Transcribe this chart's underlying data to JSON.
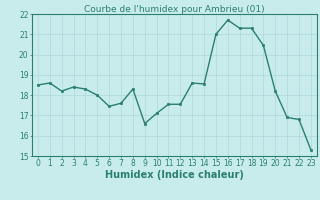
{
  "x": [
    0,
    1,
    2,
    3,
    4,
    5,
    6,
    7,
    8,
    9,
    10,
    11,
    12,
    13,
    14,
    15,
    16,
    17,
    18,
    19,
    20,
    21,
    22,
    23
  ],
  "y": [
    18.5,
    18.6,
    18.2,
    18.4,
    18.3,
    18.0,
    17.45,
    17.6,
    18.3,
    16.6,
    17.1,
    17.55,
    17.55,
    18.6,
    18.55,
    21.0,
    21.7,
    21.3,
    21.3,
    20.45,
    18.2,
    16.9,
    16.8,
    15.3
  ],
  "title": "Courbe de l'humidex pour Ambrieu (01)",
  "xlabel": "Humidex (Indice chaleur)",
  "ylim": [
    15,
    22
  ],
  "xlim_left": -0.5,
  "xlim_right": 23.5,
  "yticks": [
    15,
    16,
    17,
    18,
    19,
    20,
    21,
    22
  ],
  "xticks": [
    0,
    1,
    2,
    3,
    4,
    5,
    6,
    7,
    8,
    9,
    10,
    11,
    12,
    13,
    14,
    15,
    16,
    17,
    18,
    19,
    20,
    21,
    22,
    23
  ],
  "line_color": "#2a7f6f",
  "marker_color": "#2a7f6f",
  "bg_color": "#c8ecec",
  "grid_color": "#b0d8d8",
  "axis_color": "#2a7f6f",
  "tick_label_color": "#2a7f6f",
  "xlabel_color": "#2a7f6f",
  "title_color": "#2a7f6f",
  "markersize": 2.0,
  "linewidth": 1.0,
  "title_fontsize": 6.5,
  "label_fontsize": 7,
  "tick_fontsize": 5.5
}
